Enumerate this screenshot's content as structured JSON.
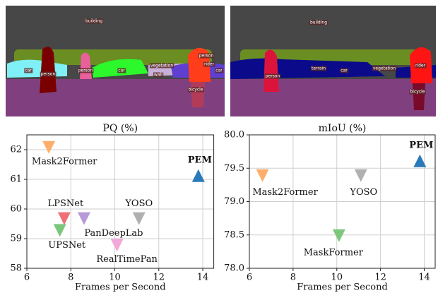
{
  "segmentation_panels": [
    {
      "labels": [
        "building",
        "car",
        "person",
        "person",
        "car",
        "vegetation",
        "wall",
        "rider",
        "person",
        "car",
        "bicycle"
      ]
    },
    {
      "labels": [
        "building",
        "person",
        "terrain",
        "car",
        "vegetation",
        "rider",
        "bicycle"
      ]
    }
  ],
  "chart_data": [
    {
      "type": "scatter",
      "title": "PQ (%)",
      "x_label": "Frames per Second",
      "xlim": [
        6,
        14.5
      ],
      "xticks": [
        6,
        8,
        10,
        12,
        14
      ],
      "ylim": [
        58,
        62.5
      ],
      "yticks": [
        58,
        59,
        60,
        61,
        62
      ],
      "grid": true,
      "series": [
        {
          "name": "Mask2Former",
          "color": "#fdae6b",
          "marker": "triangle-down",
          "x": [
            7.0
          ],
          "values": [
            62.1
          ]
        },
        {
          "name": "PEM",
          "color": "#2a7ab9",
          "marker": "triangle-up",
          "bold": true,
          "x": [
            13.8
          ],
          "values": [
            61.1
          ]
        },
        {
          "name": "LPSNet",
          "color": "#ec7074",
          "marker": "triangle-down",
          "x": [
            7.7
          ],
          "values": [
            59.7
          ]
        },
        {
          "name": "PanDeepLab",
          "color": "#b79ad8",
          "marker": "triangle-down",
          "x": [
            8.6
          ],
          "values": [
            59.7
          ]
        },
        {
          "name": "YOSO",
          "color": "#b0b0b0",
          "marker": "triangle-down",
          "x": [
            11.1
          ],
          "values": [
            59.7
          ]
        },
        {
          "name": "UPSNet",
          "color": "#7cc77c",
          "marker": "triangle-down",
          "x": [
            7.5
          ],
          "values": [
            59.3
          ]
        },
        {
          "name": "RealTimePan",
          "color": "#f2a8d8",
          "marker": "triangle-down",
          "x": [
            10.1
          ],
          "values": [
            58.8
          ]
        }
      ]
    },
    {
      "type": "scatter",
      "title": "mIoU (%)",
      "x_label": "Frames per Second",
      "xlim": [
        6,
        14.5
      ],
      "xticks": [
        6,
        8,
        10,
        12,
        14
      ],
      "ylim": [
        78,
        80
      ],
      "yticks": [
        {
          "value": 78,
          "label": "78.0"
        },
        {
          "value": 78.5,
          "label": "78.5"
        },
        {
          "value": 79,
          "label": "79.0"
        },
        {
          "value": 79.5,
          "label": "79.5"
        },
        {
          "value": 80,
          "label": "80.0"
        }
      ],
      "grid": true,
      "series": [
        {
          "name": "Mask2Former",
          "color": "#fdae6b",
          "marker": "triangle-down",
          "x": [
            6.6
          ],
          "values": [
            79.4
          ]
        },
        {
          "name": "YOSO",
          "color": "#b0b0b0",
          "marker": "triangle-down",
          "x": [
            11.1
          ],
          "values": [
            79.4
          ]
        },
        {
          "name": "PEM",
          "color": "#2a7ab9",
          "marker": "triangle-up",
          "bold": true,
          "x": [
            13.8
          ],
          "values": [
            79.6
          ]
        },
        {
          "name": "MaskFormer",
          "color": "#7cc77c",
          "marker": "triangle-down",
          "x": [
            10.1
          ],
          "values": [
            78.5
          ]
        }
      ]
    }
  ]
}
